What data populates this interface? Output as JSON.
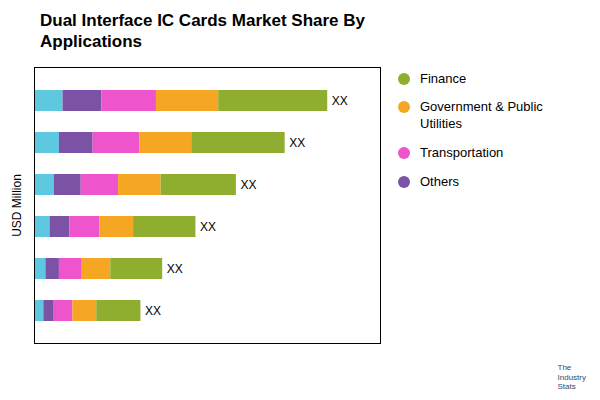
{
  "chart_data": {
    "type": "bar",
    "orientation": "horizontal",
    "stacked": true,
    "title": "Dual Interface IC Cards Market Share By\nApplications",
    "ylabel": "USD Million",
    "caption": "The\nIndustry\nStats",
    "categories": [
      null,
      null,
      null,
      null,
      null,
      null
    ],
    "series": [
      {
        "color": "#5DC8E0",
        "values": [
          0.55,
          0.48,
          0.38,
          0.3,
          0.22,
          0.18
        ]
      },
      {
        "name": "Others",
        "color": "#7B52A6",
        "values": [
          0.75,
          0.65,
          0.52,
          0.38,
          0.26,
          0.2
        ]
      },
      {
        "name": "Transportation",
        "color": "#EE55CC",
        "values": [
          1.05,
          0.9,
          0.72,
          0.58,
          0.44,
          0.36
        ]
      },
      {
        "name": "Government & Public\nUtilities",
        "color": "#F5A623",
        "values": [
          1.2,
          1.0,
          0.82,
          0.65,
          0.55,
          0.46
        ]
      },
      {
        "name": "Finance",
        "color": "#8FAD2E",
        "values": [
          2.1,
          1.8,
          1.45,
          1.2,
          1.0,
          0.85
        ]
      }
    ],
    "annotations": [
      "XX",
      "XX",
      "XX",
      "XX",
      "XX",
      "XX"
    ],
    "xlim": [
      0,
      6.667
    ],
    "xticks": [],
    "tick_labels": false,
    "grid": false,
    "legend": "right"
  }
}
